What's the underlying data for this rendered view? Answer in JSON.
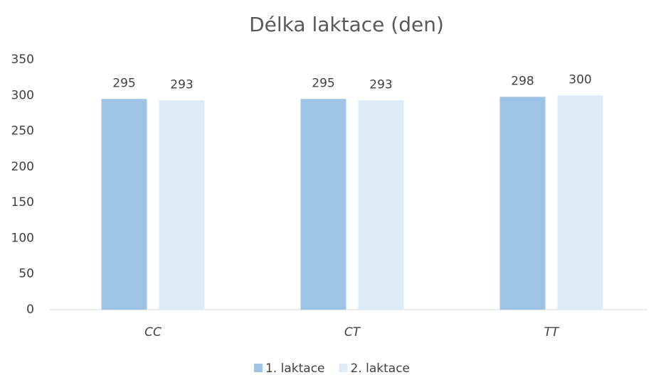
{
  "chart_data": {
    "type": "bar",
    "title": "Délka laktace (den)",
    "categories": [
      "CC",
      "CT",
      "TT"
    ],
    "series": [
      {
        "name": "1. laktace",
        "color": "#9dc3e6",
        "values": [
          295,
          295,
          298
        ]
      },
      {
        "name": "2. laktace",
        "color": "#deebf7",
        "values": [
          293,
          293,
          300
        ]
      }
    ],
    "ylim": [
      0,
      350
    ],
    "yticks": [
      0,
      50,
      100,
      150,
      200,
      250,
      300,
      350
    ],
    "grid": false,
    "legend": "bottom"
  }
}
